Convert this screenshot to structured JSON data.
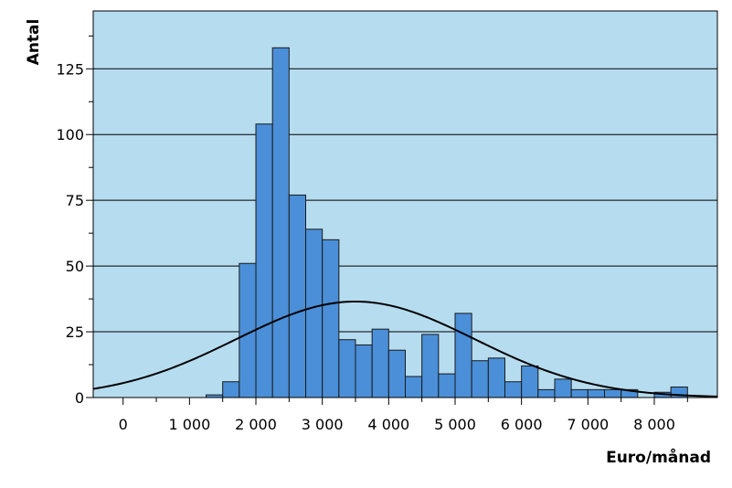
{
  "chart_data": {
    "type": "bar",
    "subtype": "histogram",
    "xlabel": "Euro/månad",
    "ylabel": "Antal",
    "xlim": [
      -450,
      8950
    ],
    "ylim": [
      0,
      147
    ],
    "x_ticks": [
      0,
      1000,
      2000,
      3000,
      4000,
      5000,
      6000,
      7000,
      8000
    ],
    "x_tick_labels": [
      "0",
      "1 000",
      "2 000",
      "3 000",
      "4 000",
      "5 000",
      "6 000",
      "7 000",
      "8 000"
    ],
    "y_ticks": [
      0,
      25,
      50,
      75,
      100,
      125
    ],
    "y_tick_labels": [
      "0",
      "25",
      "50",
      "75",
      "100",
      "125"
    ],
    "grid": "horizontal",
    "bin_width": 250,
    "bins": [
      {
        "x0": 1250,
        "x1": 1500,
        "count": 1
      },
      {
        "x0": 1500,
        "x1": 1750,
        "count": 6
      },
      {
        "x0": 1750,
        "x1": 2000,
        "count": 51
      },
      {
        "x0": 2000,
        "x1": 2250,
        "count": 104
      },
      {
        "x0": 2250,
        "x1": 2500,
        "count": 133
      },
      {
        "x0": 2500,
        "x1": 2750,
        "count": 77
      },
      {
        "x0": 2750,
        "x1": 3000,
        "count": 64
      },
      {
        "x0": 3000,
        "x1": 3250,
        "count": 60
      },
      {
        "x0": 3250,
        "x1": 3500,
        "count": 22
      },
      {
        "x0": 3500,
        "x1": 3750,
        "count": 20
      },
      {
        "x0": 3750,
        "x1": 4000,
        "count": 26
      },
      {
        "x0": 4000,
        "x1": 4250,
        "count": 18
      },
      {
        "x0": 4250,
        "x1": 4500,
        "count": 8
      },
      {
        "x0": 4500,
        "x1": 4750,
        "count": 24
      },
      {
        "x0": 4750,
        "x1": 5000,
        "count": 9
      },
      {
        "x0": 5000,
        "x1": 5250,
        "count": 32
      },
      {
        "x0": 5250,
        "x1": 5500,
        "count": 14
      },
      {
        "x0": 5500,
        "x1": 5750,
        "count": 15
      },
      {
        "x0": 5750,
        "x1": 6000,
        "count": 6
      },
      {
        "x0": 6000,
        "x1": 6250,
        "count": 12
      },
      {
        "x0": 6250,
        "x1": 6500,
        "count": 3
      },
      {
        "x0": 6500,
        "x1": 6750,
        "count": 7
      },
      {
        "x0": 6750,
        "x1": 7000,
        "count": 3
      },
      {
        "x0": 7000,
        "x1": 7250,
        "count": 3
      },
      {
        "x0": 7250,
        "x1": 7500,
        "count": 3
      },
      {
        "x0": 7500,
        "x1": 7750,
        "count": 3
      },
      {
        "x0": 8000,
        "x1": 8250,
        "count": 2
      },
      {
        "x0": 8250,
        "x1": 8500,
        "count": 4
      }
    ],
    "normal_curve": {
      "mean": 3500,
      "peak": 36.5,
      "sd": 1800
    },
    "colors": {
      "plot_background": "#b6dcef",
      "bar_fill": "#4a8fd8",
      "bar_stroke": "#1a1a1a",
      "grid": "#000000",
      "curve": "#000000"
    }
  }
}
